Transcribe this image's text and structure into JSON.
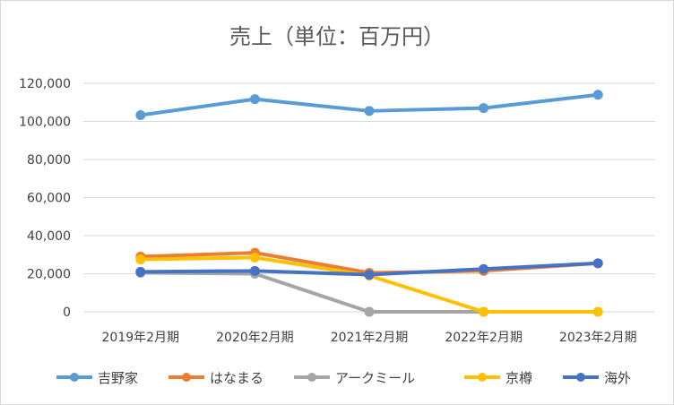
{
  "chart_data": {
    "type": "line",
    "title": "売上（単位：百万円）",
    "categories": [
      "2019年2月期",
      "2020年2月期",
      "2021年2月期",
      "2022年2月期",
      "2023年2月期"
    ],
    "ylim": [
      0,
      120000
    ],
    "yticks": [
      0,
      20000,
      40000,
      60000,
      80000,
      100000,
      120000
    ],
    "ytick_labels": [
      "0",
      "20,000",
      "40,000",
      "60,000",
      "80,000",
      "100,000",
      "120,000"
    ],
    "grid": true,
    "legend_position": "bottom",
    "series": [
      {
        "name": "吉野家",
        "color": "#5B9BD5",
        "values": [
          103300,
          111700,
          105500,
          107000,
          114000
        ]
      },
      {
        "name": "はなまる",
        "color": "#ED7D31",
        "values": [
          29000,
          31000,
          20500,
          21500,
          25500
        ]
      },
      {
        "name": "アークミール",
        "color": "#A5A5A5",
        "values": [
          20500,
          20000,
          0,
          0,
          null
        ]
      },
      {
        "name": "京樽",
        "color": "#FFC000",
        "values": [
          27500,
          28500,
          19000,
          0,
          0
        ]
      },
      {
        "name": "海外",
        "color": "#4472C4",
        "values": [
          21000,
          21500,
          19500,
          22500,
          25500
        ]
      }
    ]
  }
}
